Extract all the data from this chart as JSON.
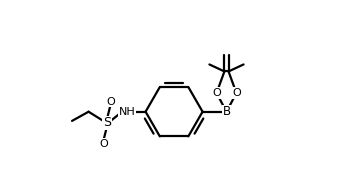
{
  "background_color": "#ffffff",
  "line_color": "#000000",
  "line_width": 1.6,
  "font_size": 8.5,
  "figsize": [
    3.5,
    1.94
  ],
  "dpi": 100,
  "xlim": [
    -0.15,
    1.0
  ],
  "ylim": [
    -0.52,
    0.52
  ]
}
